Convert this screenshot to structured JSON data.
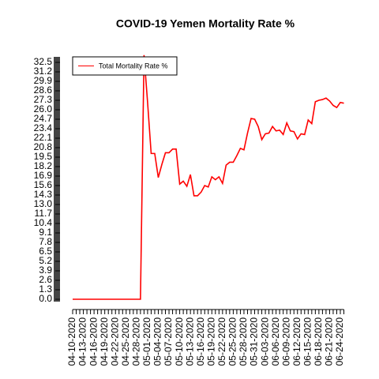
{
  "chart_data": {
    "type": "line",
    "title": "COVID-19 Yemen Mortality Rate %",
    "categories": [
      "04-10-2020",
      null,
      null,
      "04-13-2020",
      null,
      null,
      "04-16-2020",
      null,
      null,
      "04-19-2020",
      null,
      null,
      "04-22-2020",
      null,
      null,
      "04-25-2020",
      null,
      null,
      "04-28-2020",
      null,
      null,
      "05-01-2020",
      null,
      null,
      "05-04-2020",
      null,
      null,
      "05-07-2020",
      null,
      null,
      "05-10-2020",
      null,
      null,
      "05-13-2020",
      null,
      null,
      "05-16-2020",
      null,
      null,
      "05-19-2020",
      null,
      null,
      "05-22-2020",
      null,
      null,
      "05-25-2020",
      null,
      null,
      "05-28-2020",
      null,
      null,
      "05-31-2020",
      null,
      null,
      "06-03-2020",
      null,
      null,
      "06-06-2020",
      null,
      null,
      "06-09-2020",
      null,
      null,
      "06-12-2020",
      null,
      null,
      "06-15-2020",
      null,
      null,
      "06-18-2020",
      null,
      null,
      "06-21-2020",
      null,
      null,
      "06-24-2020",
      null
    ],
    "series": [
      {
        "name": "Total Mortality Rate %",
        "color": "#ff0000",
        "values": [
          0,
          0,
          0,
          0,
          0,
          0,
          0,
          0,
          0,
          0,
          0,
          0,
          0,
          0,
          0,
          0,
          0,
          0,
          0,
          0,
          33.5,
          27.0,
          20.0,
          20.0,
          16.7,
          18.5,
          20.1,
          20.1,
          20.6,
          20.6,
          15.8,
          16.2,
          15.5,
          17.1,
          14.2,
          14.2,
          14.7,
          15.6,
          15.4,
          16.8,
          16.4,
          16.8,
          15.9,
          18.4,
          18.8,
          18.8,
          19.7,
          20.7,
          20.5,
          22.8,
          24.8,
          24.7,
          23.7,
          21.9,
          22.7,
          22.8,
          23.7,
          23.1,
          23.2,
          22.6,
          24.2,
          23.1,
          23.0,
          22.0,
          22.7,
          22.6,
          24.6,
          24.1,
          27.1,
          27.3,
          27.4,
          27.6,
          27.2,
          26.6,
          26.3,
          27.0,
          26.9
        ]
      }
    ],
    "ylim": [
      0,
      32.5
    ],
    "yticks": [
      {
        "value": 0,
        "label": "0.0"
      },
      1.3,
      2.6,
      3.9,
      5.2,
      6.5,
      7.8,
      9.1,
      10.4,
      11.7,
      {
        "value": 13,
        "label": "13.0"
      },
      14.3,
      15.6,
      16.9,
      18.2,
      19.5,
      20.8,
      22.1,
      23.4,
      24.7,
      {
        "value": 26,
        "label": "26.0"
      },
      27.3,
      28.6,
      29.9,
      31.2,
      32.5
    ],
    "legend": "top-left"
  }
}
